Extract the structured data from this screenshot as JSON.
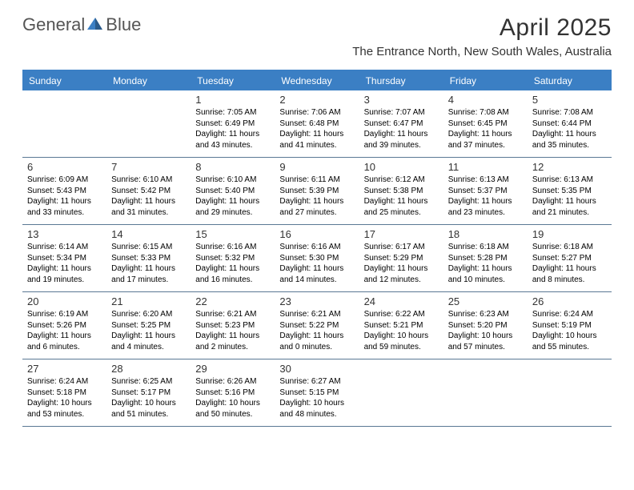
{
  "logo": {
    "part1": "General",
    "part2": "Blue"
  },
  "title": "April 2025",
  "location": "The Entrance North, New South Wales, Australia",
  "colors": {
    "header_bg": "#3b7fc4",
    "border": "#5a7894",
    "text": "#333333",
    "info_text": "#000000",
    "bg": "#ffffff"
  },
  "day_names": [
    "Sunday",
    "Monday",
    "Tuesday",
    "Wednesday",
    "Thursday",
    "Friday",
    "Saturday"
  ],
  "weeks": [
    [
      null,
      null,
      {
        "d": "1",
        "sr": "7:05 AM",
        "ss": "6:49 PM",
        "dl": "11 hours and 43 minutes."
      },
      {
        "d": "2",
        "sr": "7:06 AM",
        "ss": "6:48 PM",
        "dl": "11 hours and 41 minutes."
      },
      {
        "d": "3",
        "sr": "7:07 AM",
        "ss": "6:47 PM",
        "dl": "11 hours and 39 minutes."
      },
      {
        "d": "4",
        "sr": "7:08 AM",
        "ss": "6:45 PM",
        "dl": "11 hours and 37 minutes."
      },
      {
        "d": "5",
        "sr": "7:08 AM",
        "ss": "6:44 PM",
        "dl": "11 hours and 35 minutes."
      }
    ],
    [
      {
        "d": "6",
        "sr": "6:09 AM",
        "ss": "5:43 PM",
        "dl": "11 hours and 33 minutes."
      },
      {
        "d": "7",
        "sr": "6:10 AM",
        "ss": "5:42 PM",
        "dl": "11 hours and 31 minutes."
      },
      {
        "d": "8",
        "sr": "6:10 AM",
        "ss": "5:40 PM",
        "dl": "11 hours and 29 minutes."
      },
      {
        "d": "9",
        "sr": "6:11 AM",
        "ss": "5:39 PM",
        "dl": "11 hours and 27 minutes."
      },
      {
        "d": "10",
        "sr": "6:12 AM",
        "ss": "5:38 PM",
        "dl": "11 hours and 25 minutes."
      },
      {
        "d": "11",
        "sr": "6:13 AM",
        "ss": "5:37 PM",
        "dl": "11 hours and 23 minutes."
      },
      {
        "d": "12",
        "sr": "6:13 AM",
        "ss": "5:35 PM",
        "dl": "11 hours and 21 minutes."
      }
    ],
    [
      {
        "d": "13",
        "sr": "6:14 AM",
        "ss": "5:34 PM",
        "dl": "11 hours and 19 minutes."
      },
      {
        "d": "14",
        "sr": "6:15 AM",
        "ss": "5:33 PM",
        "dl": "11 hours and 17 minutes."
      },
      {
        "d": "15",
        "sr": "6:16 AM",
        "ss": "5:32 PM",
        "dl": "11 hours and 16 minutes."
      },
      {
        "d": "16",
        "sr": "6:16 AM",
        "ss": "5:30 PM",
        "dl": "11 hours and 14 minutes."
      },
      {
        "d": "17",
        "sr": "6:17 AM",
        "ss": "5:29 PM",
        "dl": "11 hours and 12 minutes."
      },
      {
        "d": "18",
        "sr": "6:18 AM",
        "ss": "5:28 PM",
        "dl": "11 hours and 10 minutes."
      },
      {
        "d": "19",
        "sr": "6:18 AM",
        "ss": "5:27 PM",
        "dl": "11 hours and 8 minutes."
      }
    ],
    [
      {
        "d": "20",
        "sr": "6:19 AM",
        "ss": "5:26 PM",
        "dl": "11 hours and 6 minutes."
      },
      {
        "d": "21",
        "sr": "6:20 AM",
        "ss": "5:25 PM",
        "dl": "11 hours and 4 minutes."
      },
      {
        "d": "22",
        "sr": "6:21 AM",
        "ss": "5:23 PM",
        "dl": "11 hours and 2 minutes."
      },
      {
        "d": "23",
        "sr": "6:21 AM",
        "ss": "5:22 PM",
        "dl": "11 hours and 0 minutes."
      },
      {
        "d": "24",
        "sr": "6:22 AM",
        "ss": "5:21 PM",
        "dl": "10 hours and 59 minutes."
      },
      {
        "d": "25",
        "sr": "6:23 AM",
        "ss": "5:20 PM",
        "dl": "10 hours and 57 minutes."
      },
      {
        "d": "26",
        "sr": "6:24 AM",
        "ss": "5:19 PM",
        "dl": "10 hours and 55 minutes."
      }
    ],
    [
      {
        "d": "27",
        "sr": "6:24 AM",
        "ss": "5:18 PM",
        "dl": "10 hours and 53 minutes."
      },
      {
        "d": "28",
        "sr": "6:25 AM",
        "ss": "5:17 PM",
        "dl": "10 hours and 51 minutes."
      },
      {
        "d": "29",
        "sr": "6:26 AM",
        "ss": "5:16 PM",
        "dl": "10 hours and 50 minutes."
      },
      {
        "d": "30",
        "sr": "6:27 AM",
        "ss": "5:15 PM",
        "dl": "10 hours and 48 minutes."
      },
      null,
      null,
      null
    ]
  ],
  "labels": {
    "sunrise": "Sunrise:",
    "sunset": "Sunset:",
    "daylight": "Daylight:"
  }
}
